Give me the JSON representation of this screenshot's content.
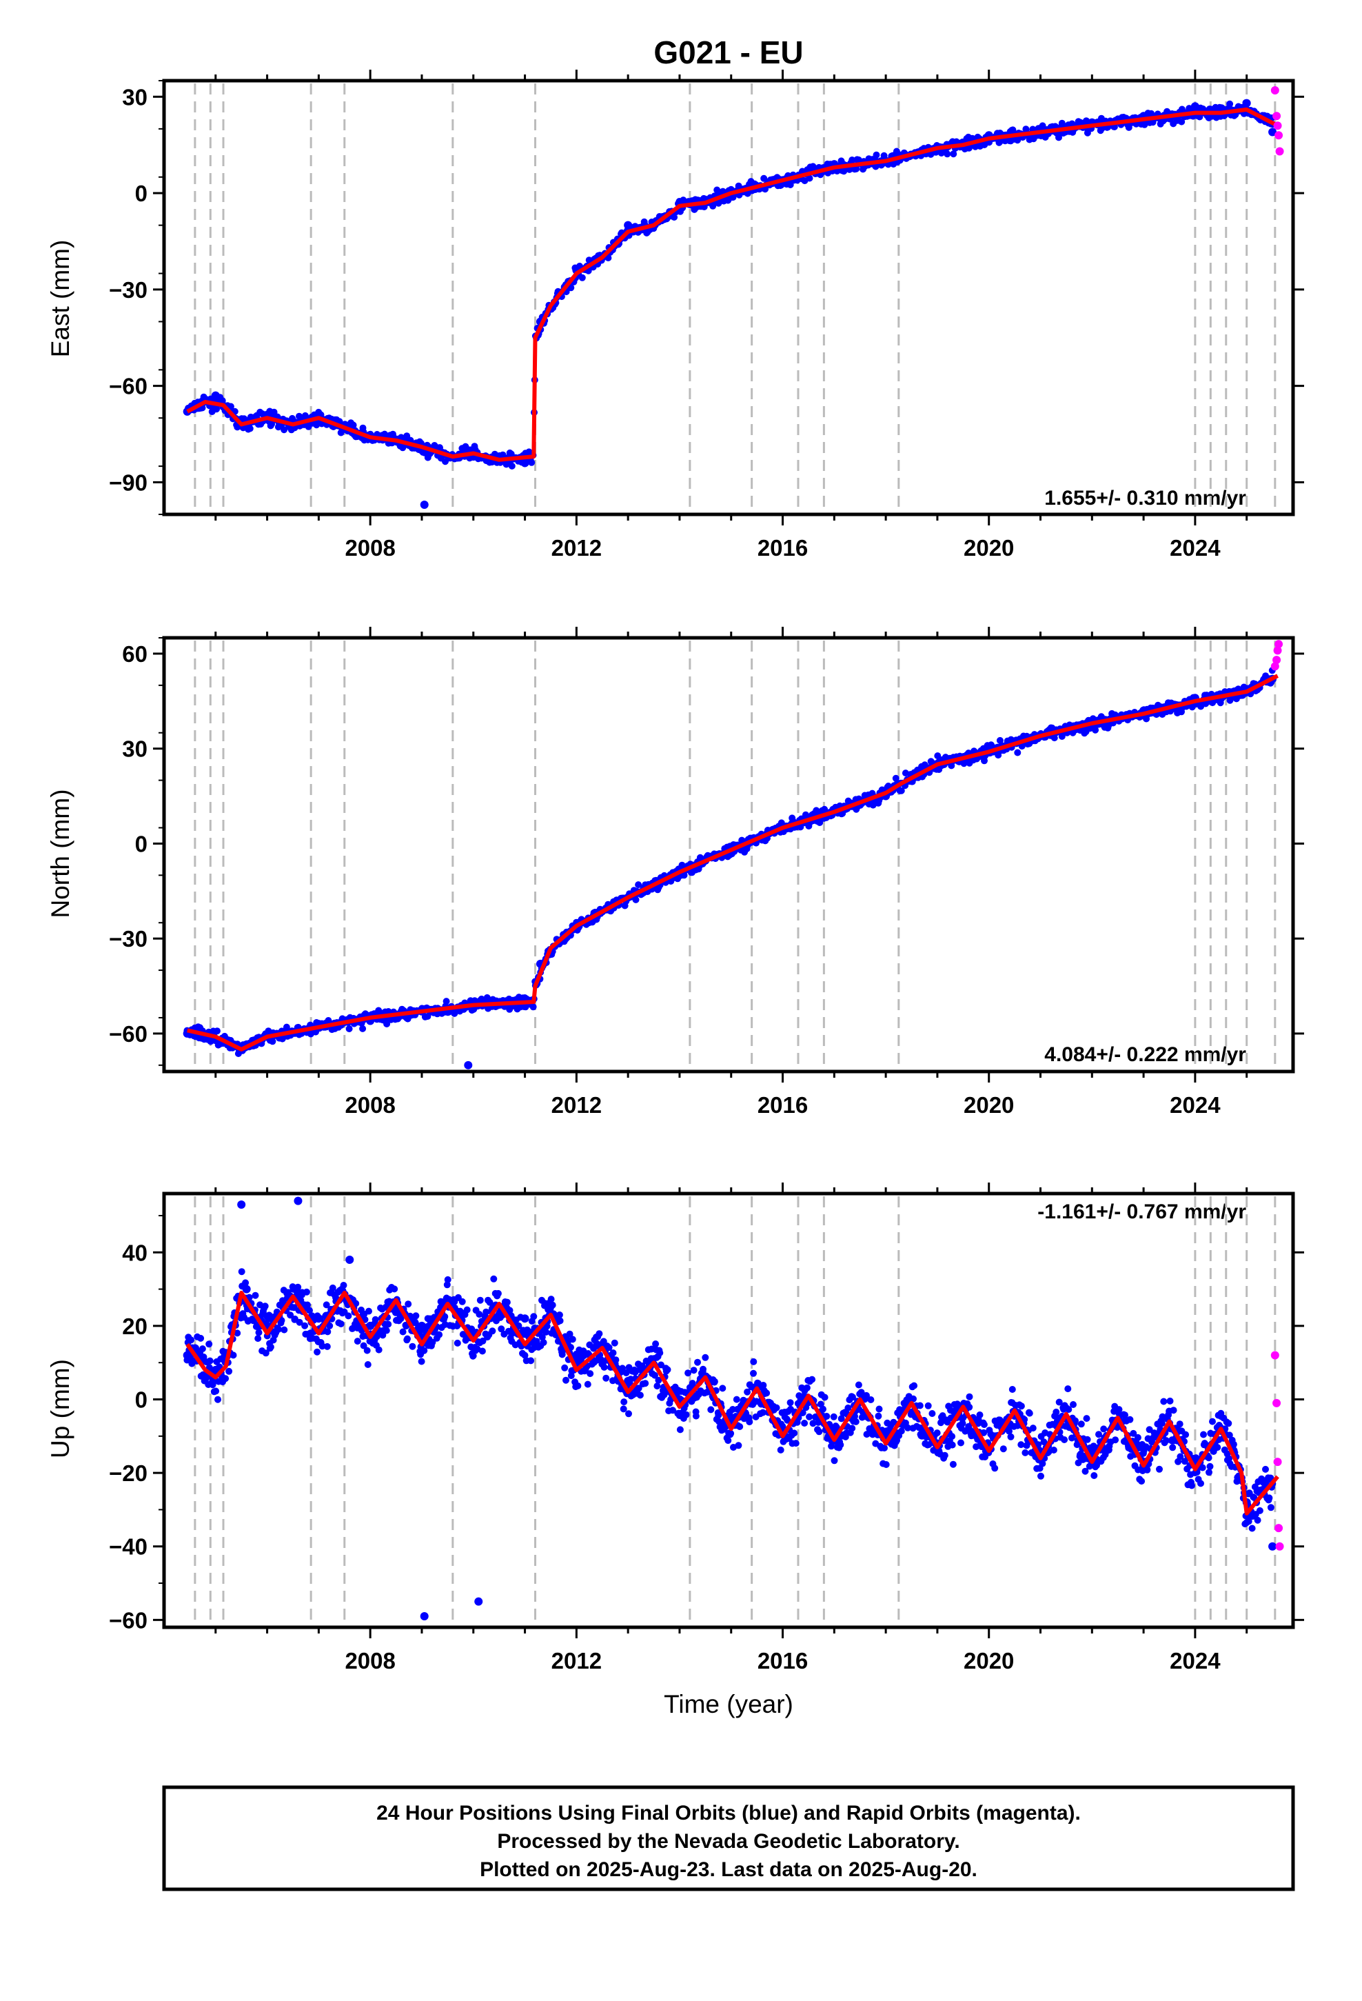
{
  "chart_data": {
    "type": "scatter",
    "title": "G021 - EU",
    "xlabel": "Time (year)",
    "xlim": [
      2004.0,
      2025.9
    ],
    "x_ticks": [
      2008,
      2012,
      2016,
      2020,
      2024
    ],
    "grid": false,
    "colors": {
      "final_points": "#0000ff",
      "rapid_points": "#ff00ff",
      "model_line": "#ff0000",
      "events": "#bbbbbb"
    },
    "event_years": [
      2004.6,
      2004.9,
      2005.15,
      2006.85,
      2007.5,
      2009.6,
      2011.2,
      2014.2,
      2015.4,
      2016.3,
      2016.8,
      2018.25,
      2024.0,
      2024.3,
      2024.6,
      2025.0,
      2025.55
    ],
    "panels": [
      {
        "id": "east",
        "ylabel": "East (mm)",
        "ylim": [
          -100,
          35
        ],
        "y_ticks": [
          30,
          0,
          -30,
          -60,
          -90
        ],
        "rate_label": "1.655+/- 0.310 mm/yr",
        "rate_position": "bottom-right",
        "series": [
          {
            "name": "model",
            "x": [
              2004.45,
              2004.8,
              2005.15,
              2005.5,
              2006.0,
              2006.5,
              2007.0,
              2007.5,
              2008.0,
              2008.5,
              2009.0,
              2009.6,
              2010.0,
              2010.5,
              2011.17,
              2011.2,
              2011.5,
              2012.0,
              2012.5,
              2013.0,
              2013.5,
              2014.0,
              2014.5,
              2015.0,
              2015.5,
              2016.0,
              2016.5,
              2017.0,
              2017.5,
              2018.0,
              2018.5,
              2019.0,
              2019.5,
              2020.0,
              2020.5,
              2021.0,
              2021.5,
              2022.0,
              2022.5,
              2023.0,
              2023.5,
              2024.0,
              2024.5,
              2025.0,
              2025.6
            ],
            "y": [
              -68,
              -65,
              -66,
              -72,
              -70,
              -72,
              -70,
              -73,
              -76,
              -77,
              -79,
              -82,
              -81,
              -83,
              -82,
              -45,
              -35,
              -25,
              -20,
              -12,
              -10,
              -4,
              -3,
              0,
              2,
              4,
              6,
              8,
              9,
              10,
              12,
              14,
              15,
              17,
              18,
              19,
              20,
              21,
              22,
              23,
              24,
              25,
              25,
              26,
              21
            ]
          },
          {
            "name": "final_points",
            "x": [
              2004.45,
              2005.0,
              2006.0,
              2007.0,
              2008.0,
              2009.0,
              2009.05,
              2010.0,
              2011.0,
              2011.3,
              2012.0,
              2013.0,
              2014.0,
              2015.0,
              2016.0,
              2017.0,
              2018.0,
              2019.0,
              2020.0,
              2021.0,
              2022.0,
              2023.0,
              2024.0,
              2025.0,
              2025.5
            ],
            "y": [
              -68,
              -63,
              -69,
              -71,
              -76,
              -80,
              -97,
              -82,
              -84,
              -40,
              -24,
              -10,
              -3,
              -1,
              4,
              9,
              10,
              14,
              18,
              20,
              22,
              24,
              27,
              28,
              19
            ]
          },
          {
            "name": "rapid_points",
            "x": [
              2025.55,
              2025.58,
              2025.6,
              2025.62,
              2025.64
            ],
            "y": [
              32,
              24,
              21,
              18,
              13
            ]
          }
        ]
      },
      {
        "id": "north",
        "ylabel": "North (mm)",
        "ylim": [
          -72,
          65
        ],
        "y_ticks": [
          60,
          30,
          0,
          -30,
          -60
        ],
        "rate_label": "4.084+/- 0.222 mm/yr",
        "rate_position": "bottom-right",
        "series": [
          {
            "name": "model",
            "x": [
              2004.45,
              2005.0,
              2005.5,
              2006.0,
              2007.0,
              2008.0,
              2009.0,
              2010.0,
              2011.17,
              2011.2,
              2011.5,
              2012.0,
              2013.0,
              2014.0,
              2015.0,
              2016.0,
              2017.0,
              2018.0,
              2018.3,
              2019.0,
              2020.0,
              2021.0,
              2022.0,
              2023.0,
              2024.0,
              2025.0,
              2025.6
            ],
            "y": [
              -59,
              -61,
              -65,
              -61,
              -58,
              -55,
              -53,
              -51,
              -50,
              -45,
              -33,
              -26,
              -17,
              -9,
              -2,
              5,
              10,
              16,
              19,
              25,
              29,
              34,
              38,
              41,
              45,
              48,
              53
            ]
          },
          {
            "name": "final_points",
            "x": [
              2004.45,
              2005.0,
              2006.0,
              2007.0,
              2008.0,
              2009.0,
              2009.9,
              2010.0,
              2011.0,
              2011.3,
              2012.0,
              2013.0,
              2014.0,
              2015.0,
              2016.0,
              2017.0,
              2018.0,
              2019.0,
              2020.0,
              2021.0,
              2022.0,
              2023.0,
              2024.0,
              2025.0,
              2025.5
            ],
            "y": [
              -60,
              -62,
              -61,
              -57,
              -56,
              -53,
              -70,
              -52,
              -49,
              -38,
              -26,
              -17,
              -9,
              -2,
              5,
              10,
              15,
              24,
              29,
              34,
              38,
              42,
              46,
              48,
              52
            ]
          },
          {
            "name": "rapid_points",
            "x": [
              2025.55,
              2025.58,
              2025.6,
              2025.62
            ],
            "y": [
              56,
              58,
              61,
              63
            ]
          }
        ]
      },
      {
        "id": "up",
        "ylabel": "Up (mm)",
        "ylim": [
          -62,
          56
        ],
        "y_ticks": [
          40,
          20,
          0,
          -20,
          -40,
          -60
        ],
        "rate_label": "-1.161+/- 0.767 mm/yr",
        "rate_position": "top-right",
        "series": [
          {
            "name": "model",
            "x": [
              2004.45,
              2004.8,
              2005.0,
              2005.2,
              2005.5,
              2006.0,
              2006.5,
              2007.0,
              2007.5,
              2008.0,
              2008.5,
              2009.0,
              2009.5,
              2010.0,
              2010.5,
              2011.0,
              2011.5,
              2012.0,
              2012.5,
              2013.0,
              2013.5,
              2014.0,
              2014.5,
              2015.0,
              2015.5,
              2016.0,
              2016.5,
              2017.0,
              2017.5,
              2018.0,
              2018.5,
              2019.0,
              2019.5,
              2020.0,
              2020.5,
              2021.0,
              2021.5,
              2022.0,
              2022.5,
              2023.0,
              2023.5,
              2024.0,
              2024.5,
              2024.9,
              2025.0,
              2025.6
            ],
            "y": [
              15,
              8,
              6,
              9,
              29,
              18,
              28,
              18,
              29,
              17,
              27,
              15,
              26,
              16,
              26,
              15,
              23,
              8,
              14,
              2,
              10,
              -2,
              6,
              -8,
              3,
              -10,
              1,
              -11,
              0,
              -12,
              -1,
              -13,
              -2,
              -14,
              -3,
              -16,
              -4,
              -17,
              -5,
              -18,
              -6,
              -19,
              -8,
              -20,
              -31,
              -21
            ]
          },
          {
            "name": "final_points",
            "x": [
              2004.45,
              2005.0,
              2005.5,
              2005.6,
              2006.0,
              2006.6,
              2007.0,
              2007.6,
              2008.0,
              2009.0,
              2009.05,
              2010.0,
              2010.1,
              2011.0,
              2012.0,
              2013.0,
              2014.0,
              2015.0,
              2016.0,
              2017.0,
              2018.0,
              2019.0,
              2020.0,
              2021.0,
              2022.0,
              2023.0,
              2024.0,
              2025.0,
              2025.5
            ],
            "y": [
              12,
              8,
              53,
              30,
              20,
              54,
              22,
              38,
              20,
              20,
              -59,
              18,
              -55,
              22,
              10,
              5,
              0,
              -5,
              -8,
              -10,
              -10,
              -12,
              -13,
              -15,
              -15,
              -18,
              -18,
              -28,
              -40
            ]
          },
          {
            "name": "rapid_points",
            "x": [
              2025.55,
              2025.58,
              2025.6,
              2025.62,
              2025.64
            ],
            "y": [
              12,
              -1,
              -17,
              -35,
              -40
            ]
          }
        ]
      }
    ]
  },
  "footer": {
    "line1": "24 Hour Positions Using Final Orbits (blue) and Rapid Orbits (magenta).",
    "line2": "Processed by the Nevada Geodetic Laboratory.",
    "line3": "Plotted on 2025-Aug-23. Last data on 2025-Aug-20."
  }
}
